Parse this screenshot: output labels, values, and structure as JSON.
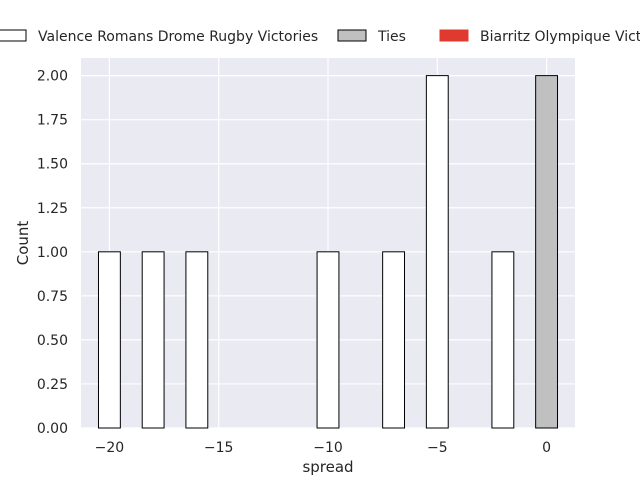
{
  "chart_data": {
    "type": "bar",
    "xlabel": "spread",
    "ylabel": "Count",
    "xlim": [
      -21.3,
      1.3
    ],
    "ylim": [
      0,
      2.1
    ],
    "xticks": [
      -20,
      -15,
      -10,
      -5,
      0
    ],
    "yticks": [
      0.0,
      0.25,
      0.5,
      0.75,
      1.0,
      1.25,
      1.5,
      1.75,
      2.0
    ],
    "xtick_labels": [
      "−20",
      "−15",
      "−10",
      "−5",
      "0"
    ],
    "ytick_labels": [
      "0.00",
      "0.25",
      "0.50",
      "0.75",
      "1.00",
      "1.25",
      "1.50",
      "1.75",
      "2.00"
    ],
    "grid": true,
    "legend_position": "top",
    "bar_width": 1,
    "series": [
      {
        "name": "Valence Romans Drome Rugby Victories",
        "color": "#ffffff",
        "edgecolor": "#000000",
        "x": [
          -20,
          -18,
          -16,
          -10,
          -7,
          -5,
          -2
        ],
        "values": [
          1,
          1,
          1,
          1,
          1,
          2,
          1
        ]
      },
      {
        "name": "Ties",
        "color": "#c0c0c0",
        "edgecolor": "#000000",
        "x": [
          0
        ],
        "values": [
          2
        ]
      },
      {
        "name": "Biarritz Olympique Victories",
        "color": "#e03a2f",
        "edgecolor": "#e03a2f",
        "x": [],
        "values": []
      }
    ]
  },
  "colors": {
    "plot_background": "#eaeaf2",
    "grid": "#ffffff"
  }
}
